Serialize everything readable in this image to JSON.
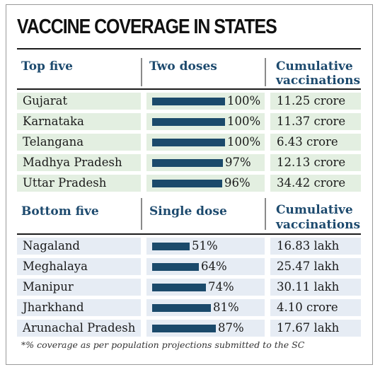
{
  "title": "VACCINE COVERAGE IN STATES",
  "footnote": "*% coverage as per population projections submitted to the SC",
  "colors": {
    "top_row_bg": "#e3efe1",
    "bottom_row_bg": "#e6ecf4",
    "bar": "#1b4a6b",
    "header_text": "#1d4a6e"
  },
  "chart_data": [
    {
      "type": "bar",
      "orientation": "horizontal",
      "group_label": "Top five",
      "value_label": "Two doses",
      "extra_label_line1": "Cumulative",
      "extra_label_line2": "vaccinations",
      "unit": "%",
      "categories": [
        "Gujarat",
        "Karnataka",
        "Telangana",
        "Madhya Pradesh",
        "Uttar Pradesh"
      ],
      "values": [
        100,
        100,
        100,
        97,
        96
      ],
      "value_text": [
        "100%",
        "100%",
        "100%",
        "97%",
        "96%"
      ],
      "cumulative": [
        "11.25 crore",
        "11.37 crore",
        "6.43 crore",
        "12.13 crore",
        "34.42 crore"
      ]
    },
    {
      "type": "bar",
      "orientation": "horizontal",
      "group_label": "Bottom five",
      "value_label": "Single dose",
      "extra_label_line1": "Cumulative",
      "extra_label_line2": "vaccinations",
      "unit": "%",
      "categories": [
        "Nagaland",
        "Meghalaya",
        "Manipur",
        "Jharkhand",
        "Arunachal Pradesh"
      ],
      "values": [
        51,
        64,
        74,
        81,
        87
      ],
      "value_text": [
        "51%",
        "64%",
        "74%",
        "81%",
        "87%"
      ],
      "cumulative": [
        "16.83 lakh",
        "25.47 lakh",
        "30.11 lakh",
        "4.10 crore",
        "17.67 lakh"
      ]
    }
  ]
}
